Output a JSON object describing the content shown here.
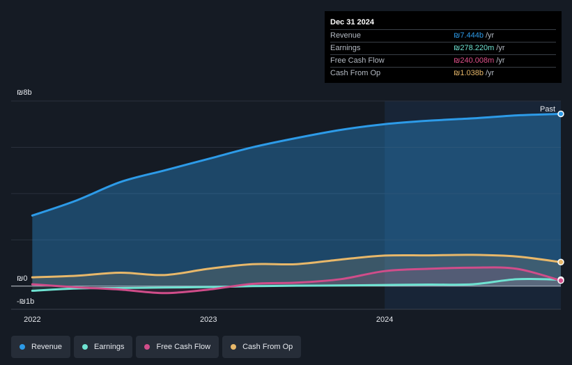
{
  "tooltip": {
    "date": "Dec 31 2024",
    "rows": [
      {
        "label": "Revenue",
        "value": "₪7.444b",
        "unit": "/yr",
        "color": "#2d9be8"
      },
      {
        "label": "Earnings",
        "value": "₪278.220m",
        "unit": "/yr",
        "color": "#6fe3d2"
      },
      {
        "label": "Free Cash Flow",
        "value": "₪240.008m",
        "unit": "/yr",
        "color": "#e0508a"
      },
      {
        "label": "Cash From Op",
        "value": "₪1.038b",
        "unit": "/yr",
        "color": "#e8b86a"
      }
    ]
  },
  "legend": [
    {
      "label": "Revenue",
      "color": "#2d9be8"
    },
    {
      "label": "Earnings",
      "color": "#6fe3d2"
    },
    {
      "label": "Free Cash Flow",
      "color": "#d04d8a"
    },
    {
      "label": "Cash From Op",
      "color": "#e8b86a"
    }
  ],
  "chart_data": {
    "type": "line",
    "title": "",
    "xlabel": "",
    "ylabel": "",
    "y_tick_labels": [
      "₪8b",
      "₪0",
      "-₪1b"
    ],
    "x_tick_labels": [
      "2022",
      "2023",
      "2024"
    ],
    "x_ticks": [
      2022.0,
      2023.0,
      2024.0
    ],
    "xlim": [
      2021.88,
      2025.0
    ],
    "ylim": [
      -1,
      8
    ],
    "past_label": "Past",
    "past_start": 2024.0,
    "x": [
      2022.0,
      2022.25,
      2022.5,
      2022.75,
      2023.0,
      2023.25,
      2023.5,
      2023.75,
      2024.0,
      2024.25,
      2024.5,
      2024.75,
      2025.0
    ],
    "series": [
      {
        "name": "Revenue",
        "color": "#2d9be8",
        "values": [
          3.05,
          3.7,
          4.5,
          5.0,
          5.5,
          6.0,
          6.4,
          6.75,
          7.0,
          7.15,
          7.25,
          7.38,
          7.444
        ]
      },
      {
        "name": "Earnings",
        "color": "#6fe3d2",
        "values": [
          -0.2,
          -0.1,
          -0.08,
          -0.06,
          -0.04,
          0.0,
          0.02,
          0.03,
          0.05,
          0.07,
          0.08,
          0.3,
          0.278
        ]
      },
      {
        "name": "Free Cash Flow",
        "color": "#d04d8a",
        "values": [
          0.08,
          -0.05,
          -0.15,
          -0.3,
          -0.15,
          0.1,
          0.15,
          0.3,
          0.65,
          0.75,
          0.8,
          0.75,
          0.24
        ]
      },
      {
        "name": "Cash From Op",
        "color": "#e8b86a",
        "values": [
          0.38,
          0.45,
          0.58,
          0.48,
          0.75,
          0.95,
          0.95,
          1.15,
          1.32,
          1.33,
          1.35,
          1.28,
          1.038
        ]
      }
    ]
  }
}
